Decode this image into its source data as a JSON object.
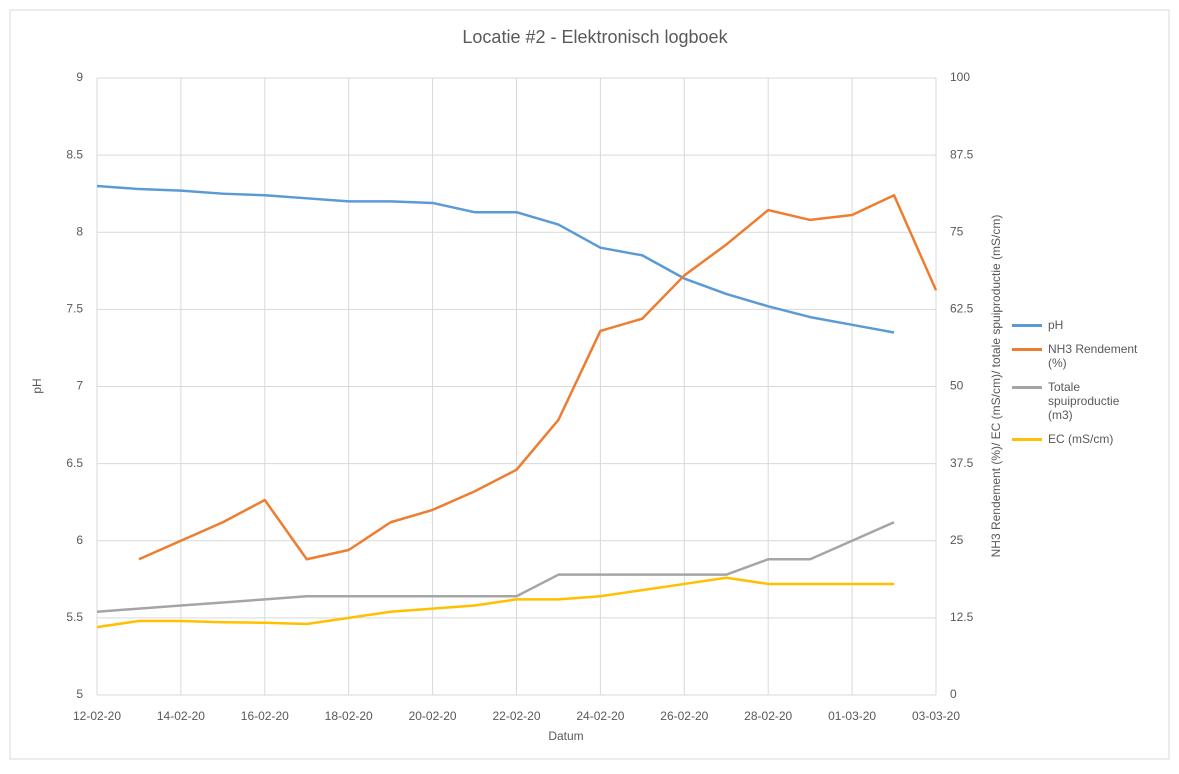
{
  "chart_data": {
    "type": "line",
    "title": "Locatie #2 - Elektronisch logboek",
    "xlabel": "Datum",
    "ylabel": "pH",
    "y2label": "NH3 Rendement (%)/ EC (mS/cm)/ totale spuiproductie (mS/cm)",
    "x": [
      "2020-02-12",
      "2020-02-13",
      "2020-02-14",
      "2020-02-15",
      "2020-02-16",
      "2020-02-17",
      "2020-02-18",
      "2020-02-19",
      "2020-02-20",
      "2020-02-21",
      "2020-02-22",
      "2020-02-23",
      "2020-02-24",
      "2020-02-25",
      "2020-02-26",
      "2020-02-27",
      "2020-02-28",
      "2020-02-29",
      "2020-03-01",
      "2020-03-02",
      "2020-03-03"
    ],
    "series": [
      {
        "name": "pH",
        "color": "#5b9bd5",
        "axis": "y",
        "values": [
          8.3,
          8.28,
          8.27,
          8.25,
          8.24,
          8.22,
          8.2,
          8.2,
          8.19,
          8.13,
          8.13,
          8.05,
          7.9,
          7.85,
          7.7,
          7.6,
          7.52,
          7.45,
          7.4,
          7.35,
          null
        ]
      },
      {
        "name": "NH3 Rendement (%)",
        "color": "#ed7d31",
        "axis": "y2",
        "values": [
          null,
          22,
          25,
          28,
          31.6,
          22,
          23.5,
          28,
          30,
          33,
          36.5,
          44.6,
          59,
          61,
          68,
          73,
          78.6,
          77,
          77.8,
          81,
          65.6
        ]
      },
      {
        "name": "Totale spuiproductie (m3)",
        "color": "#a5a5a5",
        "axis": "y2",
        "values": [
          13.5,
          14,
          14.5,
          15,
          15.5,
          16,
          16,
          16,
          16,
          16,
          16,
          19.5,
          19.5,
          19.5,
          19.5,
          19.5,
          22,
          22,
          25,
          28,
          null
        ]
      },
      {
        "name": "EC (mS/cm)",
        "color": "#ffc000",
        "axis": "y2",
        "values": [
          11,
          12,
          12,
          11.8,
          11.7,
          11.5,
          12.5,
          13.5,
          14,
          14.5,
          15.5,
          15.5,
          16,
          17,
          18,
          19,
          18,
          18,
          18,
          18,
          null
        ]
      }
    ],
    "xlim": [
      "2020-02-12",
      "2020-03-03"
    ],
    "xticks": [
      {
        "value": "2020-02-12",
        "label": "12-02-20"
      },
      {
        "value": "2020-02-14",
        "label": "14-02-20"
      },
      {
        "value": "2020-02-16",
        "label": "16-02-20"
      },
      {
        "value": "2020-02-18",
        "label": "18-02-20"
      },
      {
        "value": "2020-02-20",
        "label": "20-02-20"
      },
      {
        "value": "2020-02-22",
        "label": "22-02-20"
      },
      {
        "value": "2020-02-24",
        "label": "24-02-20"
      },
      {
        "value": "2020-02-26",
        "label": "26-02-20"
      },
      {
        "value": "2020-02-28",
        "label": "28-02-20"
      },
      {
        "value": "2020-03-01",
        "label": "01-03-20"
      },
      {
        "value": "2020-03-03",
        "label": "03-03-20"
      }
    ],
    "ylim": [
      5,
      9
    ],
    "yticks": [
      5,
      5.5,
      6,
      6.5,
      7,
      7.5,
      8,
      8.5,
      9
    ],
    "y2lim": [
      0,
      100
    ],
    "y2ticks": [
      0,
      12.5,
      25,
      37.5,
      50,
      62.5,
      75,
      87.5,
      100
    ],
    "grid": true,
    "legend": "right"
  }
}
